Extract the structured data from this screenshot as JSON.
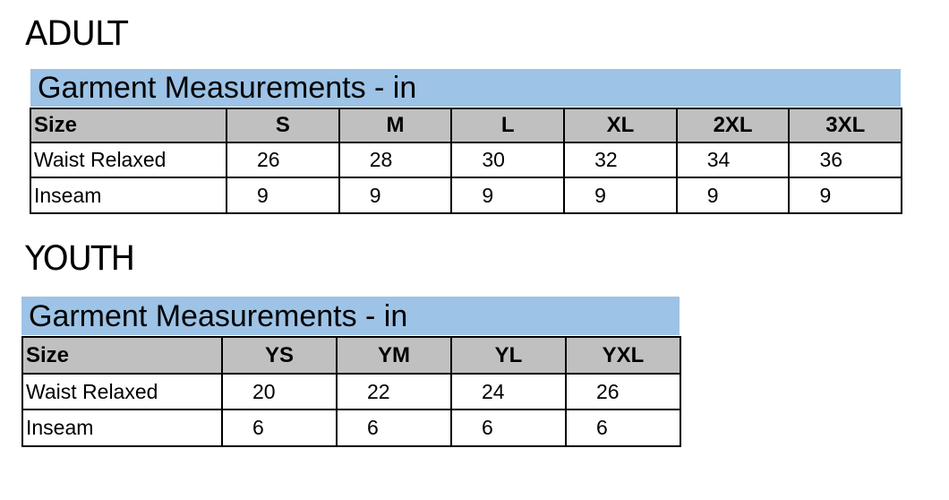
{
  "adult": {
    "heading": "ADULT",
    "table_title": "Garment Measurements - in",
    "header": [
      "Size",
      "S",
      "M",
      "L",
      "XL",
      "2XL",
      "3XL"
    ],
    "rows": [
      [
        "Waist Relaxed",
        "26",
        "28",
        "30",
        "32",
        "34",
        "36"
      ],
      [
        "Inseam",
        "9",
        "9",
        "9",
        "9",
        "9",
        "9"
      ]
    ]
  },
  "youth": {
    "heading": "YOUTH",
    "table_title": "Garment Measurements - in",
    "header": [
      "Size",
      "YS",
      "YM",
      "YL",
      "YXL"
    ],
    "rows": [
      [
        "Waist Relaxed",
        "20",
        "22",
        "24",
        "26"
      ],
      [
        "Inseam",
        "6",
        "6",
        "6",
        "6"
      ]
    ]
  },
  "colors": {
    "title_band": "#9dc3e6",
    "header_row": "#c0c0c0"
  }
}
